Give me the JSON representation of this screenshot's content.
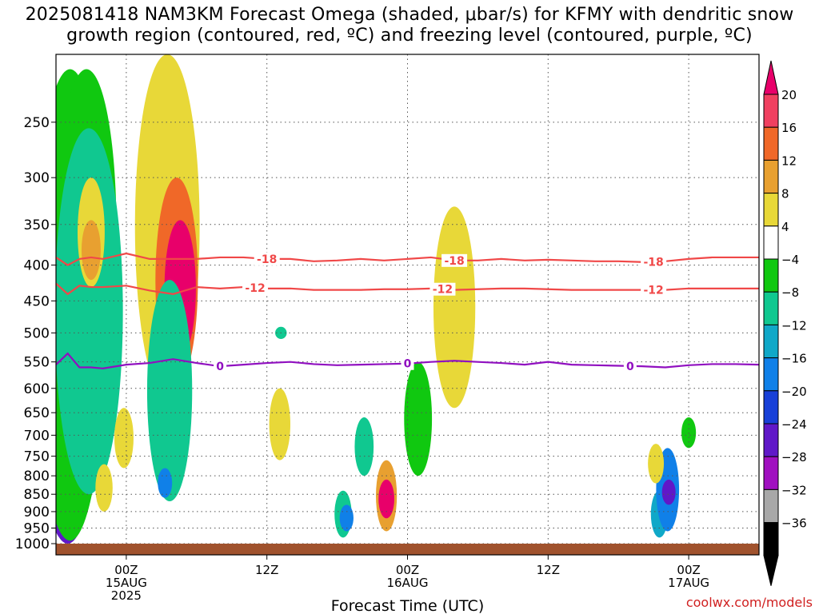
{
  "title_line1": "2025081418 NAM3KM Forecast Omega (shaded, μbar/s) for KFMY with dendritic snow",
  "title_line2": "growth region (contoured, red, ºC) and freezing level (contoured, purple, ºC)",
  "watermark": "coolwx.com/models",
  "chart_data": {
    "type": "heatmap",
    "title": "2025081418 NAM3KM Forecast Omega (shaded, μbar/s) for KFMY with dendritic snow growth region (contoured, red, ºC) and freezing level (contoured, purple, ºC)",
    "xlabel": "Forecast Time (UTC)",
    "ylabel": "",
    "x_unit": "forecast hour from 2025-08-14 18Z",
    "x_range": [
      0,
      60
    ],
    "y_range_hpa": [
      1000,
      200
    ],
    "y_scale": "log pressure (inverted)",
    "y_ticks": [
      "250",
      "300",
      "350",
      "400",
      "450",
      "500",
      "550",
      "600",
      "650",
      "700",
      "750",
      "800",
      "850",
      "900",
      "950",
      "1000"
    ],
    "x_ticks": [
      {
        "hour": 6,
        "lines": [
          "00Z",
          "15AUG",
          "2025"
        ]
      },
      {
        "hour": 18,
        "lines": [
          "12Z"
        ]
      },
      {
        "hour": 30,
        "lines": [
          "00Z",
          "16AUG"
        ]
      },
      {
        "hour": 42,
        "lines": [
          "12Z"
        ]
      },
      {
        "hour": 54,
        "lines": [
          "00Z",
          "17AUG"
        ]
      }
    ],
    "grid": true,
    "colorbar": {
      "labels": [
        "20",
        "16",
        "12",
        "8",
        "4",
        "−4",
        "−8",
        "−12",
        "−16",
        "−20",
        "−24",
        "−28",
        "−32",
        "−36"
      ],
      "colors": [
        "#f04060",
        "#f06828",
        "#e8a030",
        "#e8d838",
        "#ffffff",
        "#10c810",
        "#10c890",
        "#10a8c8",
        "#1080e8",
        "#1840d8",
        "#6018c8",
        "#a010c0",
        "#a8a8a8",
        "#000000"
      ],
      "top_arrow_color": "#e8006a",
      "bottom_arrow_color": "#000000"
    },
    "omega_features": [
      {
        "hour": 1.0,
        "p_top": 360,
        "p_bot": 990,
        "value": -40
      },
      {
        "hour": 1.0,
        "p_top": 320,
        "p_bot": 1000,
        "value": -24
      },
      {
        "hour": 1.2,
        "p_top": 210,
        "p_bot": 990,
        "value": -6
      },
      {
        "hour": 2.6,
        "p_top": 210,
        "p_bot": 590,
        "value": -6
      },
      {
        "hour": 2.8,
        "p_top": 255,
        "p_bot": 850,
        "value": -8
      },
      {
        "hour": 3.0,
        "p_top": 300,
        "p_bot": 430,
        "value": 6
      },
      {
        "hour": 3.0,
        "p_top": 345,
        "p_bot": 420,
        "value": 10
      },
      {
        "hour": 4.1,
        "p_top": 770,
        "p_bot": 900,
        "value": 5
      },
      {
        "hour": 5.8,
        "p_top": 640,
        "p_bot": 780,
        "value": 5
      },
      {
        "hour": 9.5,
        "p_top": 200,
        "p_bot": 620,
        "value": 6
      },
      {
        "hour": 10.3,
        "p_top": 300,
        "p_bot": 590,
        "value": 12
      },
      {
        "hour": 10.6,
        "p_top": 345,
        "p_bot": 540,
        "value": 24
      },
      {
        "hour": 9.7,
        "p_top": 420,
        "p_bot": 870,
        "value": -8
      },
      {
        "hour": 9.3,
        "p_top": 780,
        "p_bot": 860,
        "value": -16
      },
      {
        "hour": 19.1,
        "p_top": 600,
        "p_bot": 760,
        "value": 5
      },
      {
        "hour": 19.2,
        "p_top": 490,
        "p_bot": 510,
        "value": -8
      },
      {
        "hour": 24.5,
        "p_top": 840,
        "p_bot": 980,
        "value": -10
      },
      {
        "hour": 24.8,
        "p_top": 880,
        "p_bot": 960,
        "value": -16
      },
      {
        "hour": 26.3,
        "p_top": 660,
        "p_bot": 800,
        "value": -8
      },
      {
        "hour": 28.2,
        "p_top": 760,
        "p_bot": 960,
        "value": 8
      },
      {
        "hour": 28.2,
        "p_top": 810,
        "p_bot": 920,
        "value": 24
      },
      {
        "hour": 30.9,
        "p_top": 550,
        "p_bot": 800,
        "value": -6
      },
      {
        "hour": 34.0,
        "p_top": 330,
        "p_bot": 640,
        "value": 5
      },
      {
        "hour": 51.5,
        "p_top": 840,
        "p_bot": 980,
        "value": -12
      },
      {
        "hour": 52.2,
        "p_top": 730,
        "p_bot": 960,
        "value": -16
      },
      {
        "hour": 52.3,
        "p_top": 810,
        "p_bot": 880,
        "value": -26
      },
      {
        "hour": 51.2,
        "p_top": 720,
        "p_bot": 820,
        "value": 5
      },
      {
        "hour": 54.0,
        "p_top": 660,
        "p_bot": 730,
        "value": -6
      }
    ],
    "series": [
      {
        "name": "-18",
        "color": "#f04848",
        "x": [
          0,
          1,
          2,
          3,
          4,
          6,
          8,
          10,
          12,
          14,
          16,
          18,
          20,
          22,
          24,
          26,
          28,
          30,
          32,
          34,
          36,
          38,
          40,
          42,
          44,
          46,
          48,
          50,
          52,
          54,
          56,
          58,
          60
        ],
        "y": [
          390,
          400,
          392,
          390,
          392,
          385,
          392,
          392,
          392,
          390,
          390,
          392,
          392,
          395,
          394,
          392,
          394,
          392,
          390,
          394,
          394,
          392,
          394,
          393,
          394,
          395,
          395,
          396,
          395,
          392,
          390,
          390,
          390
        ],
        "labels_at": [
          18,
          34,
          51
        ]
      },
      {
        "name": "-12",
        "color": "#f04848",
        "x": [
          0,
          1,
          2,
          3,
          4,
          6,
          8,
          10,
          12,
          14,
          16,
          18,
          20,
          22,
          24,
          26,
          28,
          30,
          32,
          34,
          36,
          38,
          40,
          42,
          44,
          46,
          48,
          50,
          52,
          54,
          56,
          58,
          60
        ],
        "y": [
          425,
          440,
          428,
          430,
          430,
          428,
          435,
          440,
          430,
          432,
          430,
          432,
          432,
          434,
          434,
          434,
          433,
          433,
          432,
          434,
          433,
          432,
          432,
          433,
          434,
          434,
          434,
          434,
          434,
          432,
          432,
          432,
          432
        ],
        "labels_at": [
          17,
          33,
          51
        ]
      },
      {
        "name": "0",
        "color": "#9010c0",
        "x": [
          0,
          1,
          2,
          3,
          4,
          6,
          8,
          10,
          12,
          14,
          16,
          18,
          20,
          22,
          24,
          26,
          28,
          30,
          32,
          34,
          36,
          38,
          40,
          42,
          44,
          46,
          48,
          50,
          52,
          54,
          56,
          58,
          60
        ],
        "y": [
          555,
          535,
          560,
          560,
          562,
          555,
          552,
          545,
          552,
          558,
          555,
          552,
          550,
          554,
          556,
          555,
          554,
          553,
          550,
          548,
          550,
          552,
          555,
          550,
          555,
          556,
          557,
          558,
          560,
          556,
          554,
          554,
          555
        ],
        "labels_at": [
          14,
          30,
          49
        ]
      }
    ]
  }
}
